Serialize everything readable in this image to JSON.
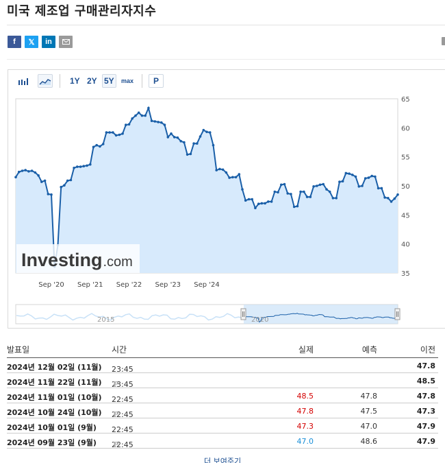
{
  "page": {
    "title": "미국 제조업 구매관리자지수"
  },
  "share": {
    "facebook": "f",
    "twitter": "𝕏",
    "linkedin": "in"
  },
  "toolbar": {
    "ranges": [
      "1Y",
      "2Y",
      "5Y",
      "max"
    ],
    "active_range": "5Y",
    "p_label": "P"
  },
  "watermark": {
    "brand": "Investing",
    "suffix": ".com"
  },
  "navigator": {
    "labels": [
      "2015",
      "2020"
    ]
  },
  "chart_data": {
    "type": "area",
    "y_ticks": [
      35,
      40,
      45,
      50,
      55,
      60,
      65
    ],
    "ylim": [
      35,
      65
    ],
    "x_ticks": [
      "Sep '20",
      "Sep '21",
      "Sep '22",
      "Sep '23",
      "Sep '24"
    ],
    "x_start": "2019-10",
    "x_end": "2024-11",
    "colors": {
      "line": "#1a5fa8",
      "fill": "#d7eafc",
      "navigator_fill": "#c8e1f7"
    },
    "series": [
      {
        "values": [
          51.5,
          52.4,
          52.6,
          52.7,
          52.5,
          52.6,
          52.3,
          51.8,
          50.7,
          50.9,
          48.6,
          48.5,
          36.1,
          39.8,
          49.8,
          50.1,
          50.9,
          51.0,
          53.1,
          53.3,
          53.3,
          53.4,
          53.5,
          53.7,
          56.7,
          57.0,
          56.8,
          57.2,
          59.2,
          59.2,
          59.2,
          58.7,
          58.8,
          59.0,
          60.5,
          60.6,
          61.6,
          62.1,
          62.6,
          62.1,
          62.1,
          63.4,
          61.2,
          61.1,
          61.0,
          60.9,
          60.5,
          58.4,
          59.0,
          58.4,
          58.3,
          57.7,
          57.5,
          55.4,
          55.5,
          57.3,
          57.3,
          58.5,
          59.6,
          59.3,
          59.2,
          57.0,
          52.7,
          52.9,
          52.8,
          52.3,
          51.4,
          51.5,
          51.5,
          52.0,
          49.4,
          47.5,
          47.7,
          47.7,
          46.2,
          46.9,
          47.0,
          47.0,
          47.3,
          47.3,
          49.0,
          48.9,
          50.2,
          50.3,
          48.7,
          48.6,
          46.4,
          46.5,
          49.0,
          49.0,
          48.1,
          48.1,
          49.9,
          50.0,
          50.2,
          50.3,
          49.4,
          49.0,
          47.9,
          47.9,
          50.7,
          50.8,
          52.2,
          52.1,
          51.9,
          51.6,
          49.9,
          50.0,
          51.3,
          51.4,
          51.7,
          51.6,
          49.6,
          49.6,
          48.0,
          47.9,
          47.3,
          47.8,
          48.5
        ]
      }
    ]
  },
  "table": {
    "headers": {
      "date": "발표일",
      "time": "시간",
      "actual": "실제",
      "forecast": "예측",
      "previous": "이전"
    },
    "rows": [
      {
        "date": "2024년 12월 02일 (11월)",
        "time": "23:45",
        "prelim": false,
        "actual": "",
        "actual_color": "",
        "forecast": "",
        "previous": "47.8"
      },
      {
        "date": "2024년 11월 22일 (11월)",
        "time": "23:45",
        "prelim": true,
        "actual": "",
        "actual_color": "",
        "forecast": "",
        "previous": "48.5"
      },
      {
        "date": "2024년 11월 01일 (10월)",
        "time": "22:45",
        "prelim": false,
        "actual": "48.5",
        "actual_color": "red",
        "forecast": "47.8",
        "previous": "47.8"
      },
      {
        "date": "2024년 10월 24일 (10월)",
        "time": "22:45",
        "prelim": true,
        "actual": "47.8",
        "actual_color": "red",
        "forecast": "47.5",
        "previous": "47.3"
      },
      {
        "date": "2024년 10월 01일 (9월)",
        "time": "22:45",
        "prelim": false,
        "actual": "47.3",
        "actual_color": "red",
        "forecast": "47.0",
        "previous": "47.9"
      },
      {
        "date": "2024년 09월 23일 (9월)",
        "time": "22:45",
        "prelim": true,
        "actual": "47.0",
        "actual_color": "blue",
        "forecast": "48.6",
        "previous": "47.9"
      }
    ],
    "prelim_mark": "P",
    "more_label": "더 보여주기"
  }
}
